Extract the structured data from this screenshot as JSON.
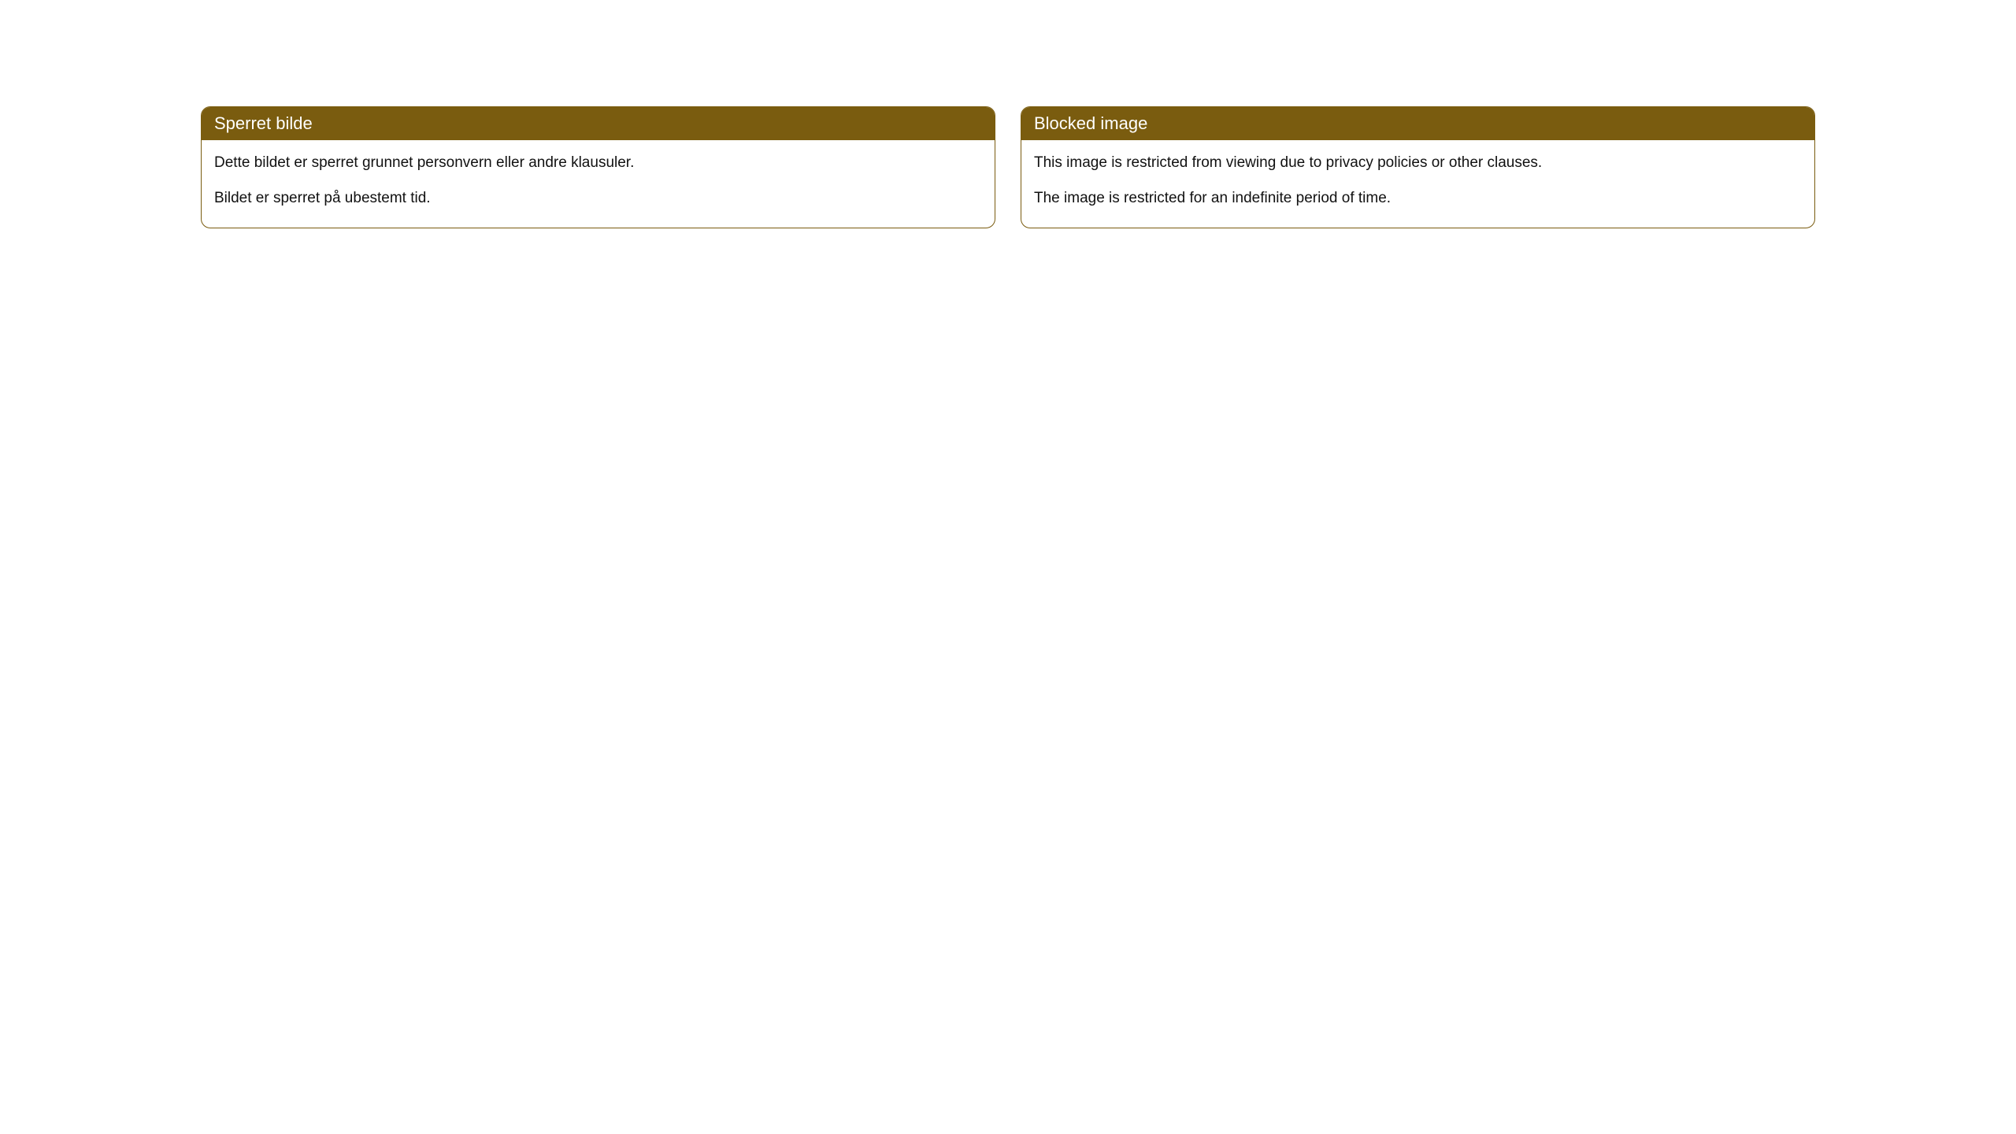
{
  "cards": [
    {
      "title": "Sperret bilde",
      "paragraph1": "Dette bildet er sperret grunnet personvern eller andre klausuler.",
      "paragraph2": "Bildet er sperret på ubestemt tid."
    },
    {
      "title": "Blocked image",
      "paragraph1": "This image is restricted from viewing due to privacy policies or other clauses.",
      "paragraph2": "The image is restricted for an indefinite period of time."
    }
  ],
  "colors": {
    "header_background": "#7a5c0f",
    "header_text": "#ffffff",
    "card_border": "#7a5c0f",
    "body_text": "#111111",
    "page_background": "#ffffff"
  },
  "typography": {
    "header_fontsize": 22,
    "body_fontsize": 19,
    "font_family": "Arial, Helvetica, sans-serif"
  },
  "layout": {
    "border_radius": 12,
    "card_gap": 32
  }
}
